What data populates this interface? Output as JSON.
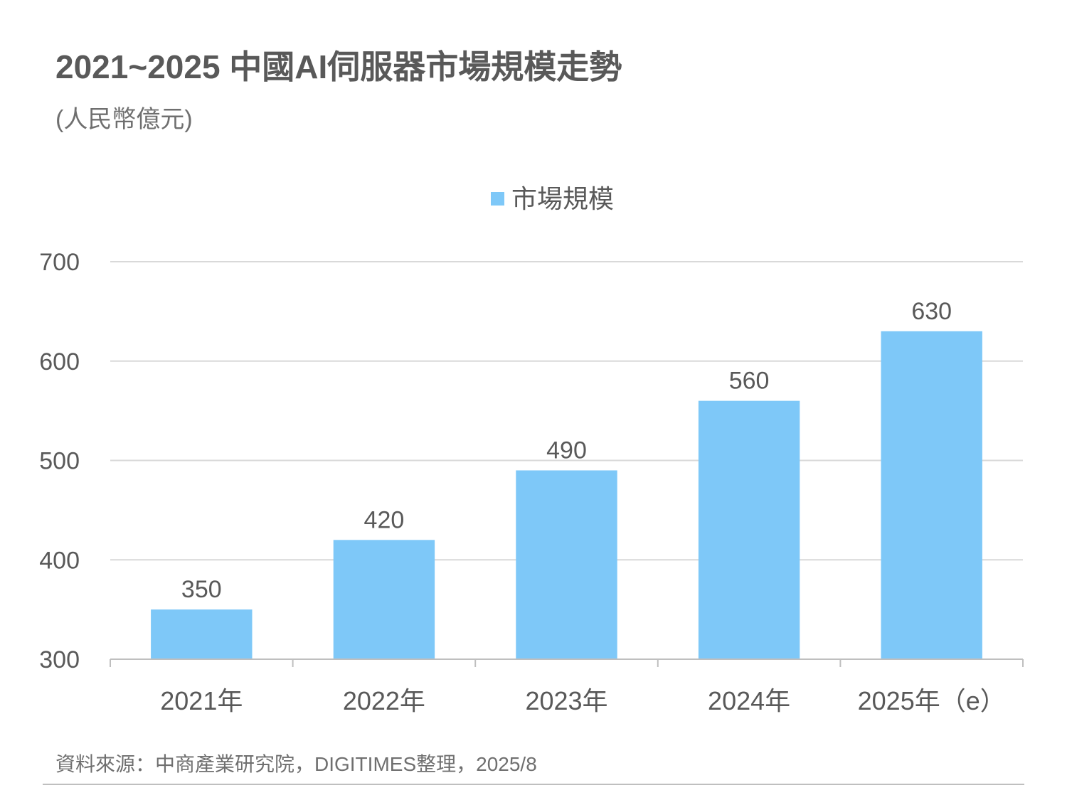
{
  "title": "2021~2025 中國AI伺服器市場規模走勢",
  "subtitle": "(人民幣億元)",
  "source": "資料來源：中商產業研究院，DIGITIMES整理，2025/8",
  "colors": {
    "bar": "#7ec8f8",
    "grid": "#d9d9d9",
    "axis": "#bfbfbf",
    "text": "#595959"
  },
  "chart_data": {
    "type": "bar",
    "categories": [
      "2021年",
      "2022年",
      "2023年",
      "2024年",
      "2025年（e）"
    ],
    "series": [
      {
        "name": "市場規模",
        "values": [
          350,
          420,
          490,
          560,
          630
        ]
      }
    ],
    "ylim": [
      300,
      700
    ],
    "yticks": [
      300,
      400,
      500,
      600,
      700
    ],
    "legend": "top-center",
    "grid": true,
    "data_labels": true
  }
}
